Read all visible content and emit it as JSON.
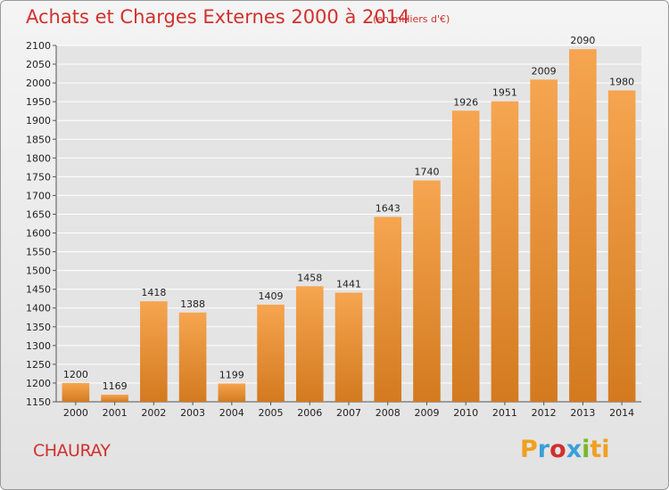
{
  "header": {
    "title": "Achats et Charges Externes 2000 à 2014",
    "unit": "(en milliers d'€)"
  },
  "footer": {
    "commune": "CHAURAY",
    "logo_letters": [
      "P",
      "r",
      "o",
      "x",
      "i",
      "t",
      "i"
    ]
  },
  "colors": {
    "title": "#d0312d",
    "bar_light": "#f6a550",
    "bar_dark": "#d37a1f",
    "grid": "#ffffff"
  },
  "chart_data": {
    "type": "bar",
    "title": "Achats et Charges Externes 2000 à 2014",
    "xlabel": "",
    "ylabel": "",
    "categories": [
      "2000",
      "2001",
      "2002",
      "2003",
      "2004",
      "2005",
      "2006",
      "2007",
      "2008",
      "2009",
      "2010",
      "2011",
      "2012",
      "2013",
      "2014"
    ],
    "values": [
      1200,
      1169,
      1418,
      1388,
      1199,
      1409,
      1458,
      1441,
      1643,
      1740,
      1926,
      1951,
      2009,
      2090,
      1980
    ],
    "ylim": [
      1150,
      2100
    ],
    "yticks": [
      1150,
      1200,
      1250,
      1300,
      1350,
      1400,
      1450,
      1500,
      1550,
      1600,
      1650,
      1700,
      1750,
      1800,
      1850,
      1900,
      1950,
      2000,
      2050,
      2100
    ],
    "grid": true
  }
}
